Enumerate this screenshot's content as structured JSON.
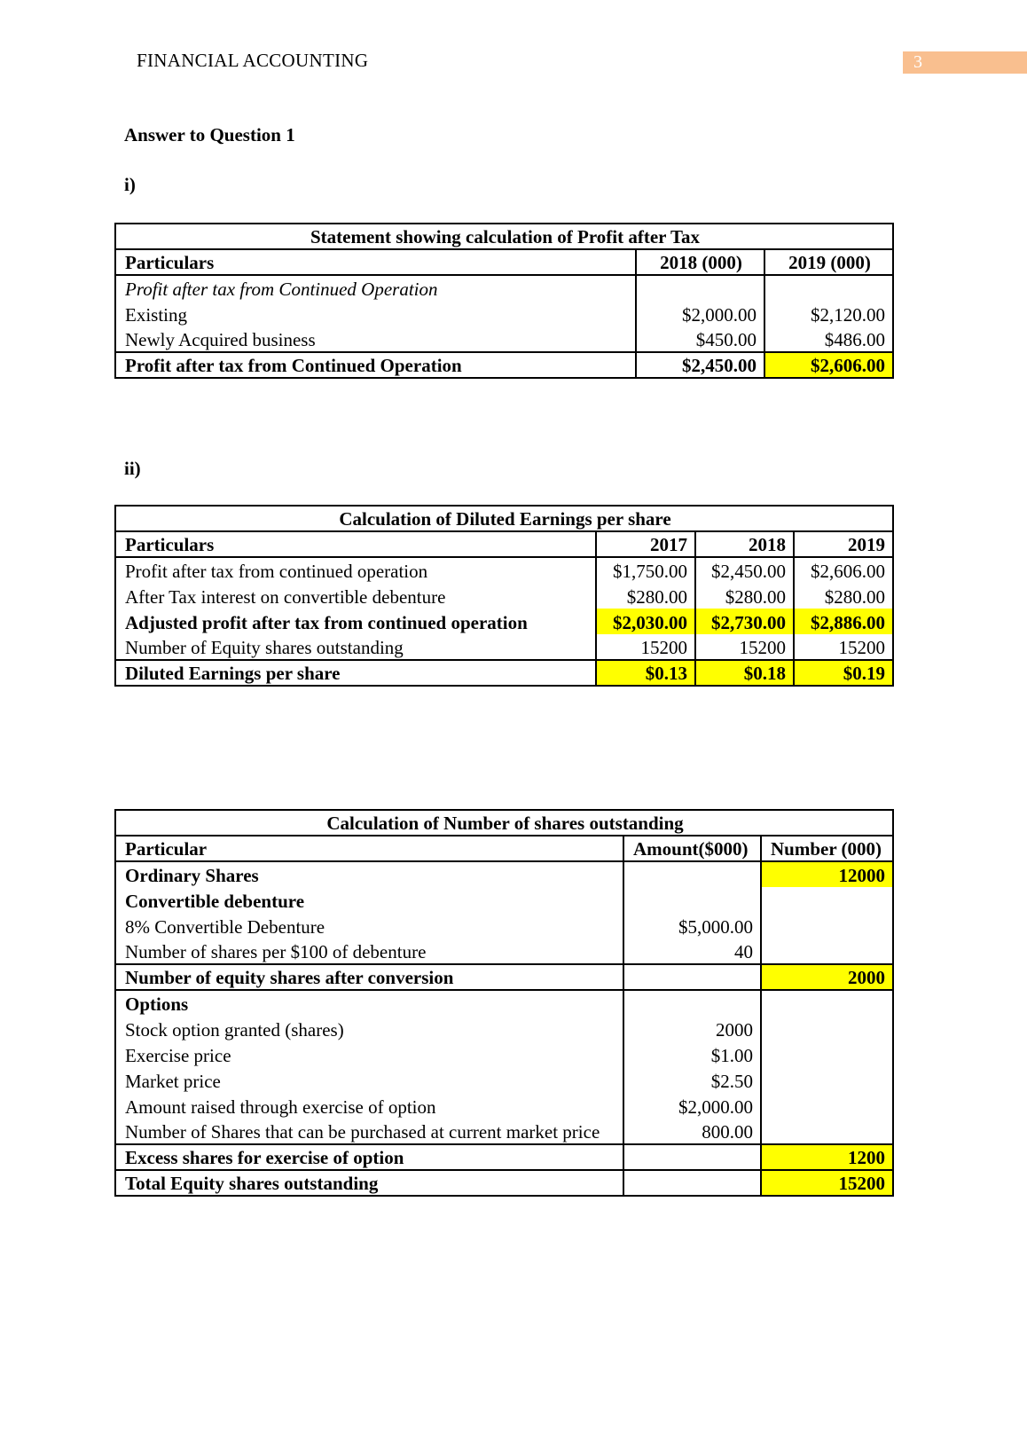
{
  "header": {
    "title": "FINANCIAL ACCOUNTING",
    "page_number": "3"
  },
  "heading": "Answer to Question 1",
  "sections": [
    {
      "label": "i)",
      "table": {
        "title": "Statement showing calculation of Profit after Tax",
        "columns": [
          "Particulars",
          "2018 (000)",
          "2019 (000)"
        ],
        "rows": [
          [
            "Profit after tax from Continued Operation",
            null,
            null
          ],
          [
            "Existing",
            "$2,000.00",
            "$2,120.00"
          ],
          [
            "Newly Acquired business",
            "$450.00",
            "$486.00"
          ],
          [
            "Profit after tax from Continued Operation",
            "$2,450.00",
            "$2,606.00"
          ]
        ]
      }
    },
    {
      "label": "ii)",
      "table": {
        "title": "Calculation of Diluted Earnings per share",
        "columns": [
          "Particulars",
          "2017",
          "2018",
          "2019"
        ],
        "rows": [
          [
            "Profit after tax from continued operation",
            "$1,750.00",
            "$2,450.00",
            "$2,606.00"
          ],
          [
            "After Tax interest on convertible debenture",
            "$280.00",
            "$280.00",
            "$280.00"
          ],
          [
            "Adjusted profit after tax from continued operation",
            "$2,030.00",
            "$2,730.00",
            "$2,886.00"
          ],
          [
            "Number of Equity shares outstanding",
            "15200",
            "15200",
            "15200"
          ],
          [
            "Diluted Earnings per share",
            "$0.13",
            "$0.18",
            "$0.19"
          ]
        ]
      }
    },
    {
      "table": {
        "title": "Calculation of Number of shares outstanding",
        "columns": [
          "Particular",
          "Amount($000)",
          "Number (000)"
        ],
        "rows": [
          [
            "Ordinary Shares",
            null,
            "12000"
          ],
          [
            "Convertible debenture",
            null,
            null
          ],
          [
            "8% Convertible Debenture",
            "$5,000.00",
            null
          ],
          [
            "Number of shares per $100 of debenture",
            "40",
            null
          ],
          [
            "Number of equity shares after conversion",
            null,
            "2000"
          ],
          [
            "Options",
            null,
            null
          ],
          [
            "Stock option granted (shares)",
            "2000",
            null
          ],
          [
            "Exercise price",
            "$1.00",
            null
          ],
          [
            "Market price",
            "$2.50",
            null
          ],
          [
            "Amount raised through exercise of option",
            "$2,000.00",
            null
          ],
          [
            "Number of Shares that can be purchased at current market price",
            "800.00",
            null
          ],
          [
            "Excess shares for exercise of option",
            null,
            "1200"
          ],
          [
            "Total Equity shares outstanding",
            null,
            "15200"
          ]
        ]
      }
    }
  ]
}
